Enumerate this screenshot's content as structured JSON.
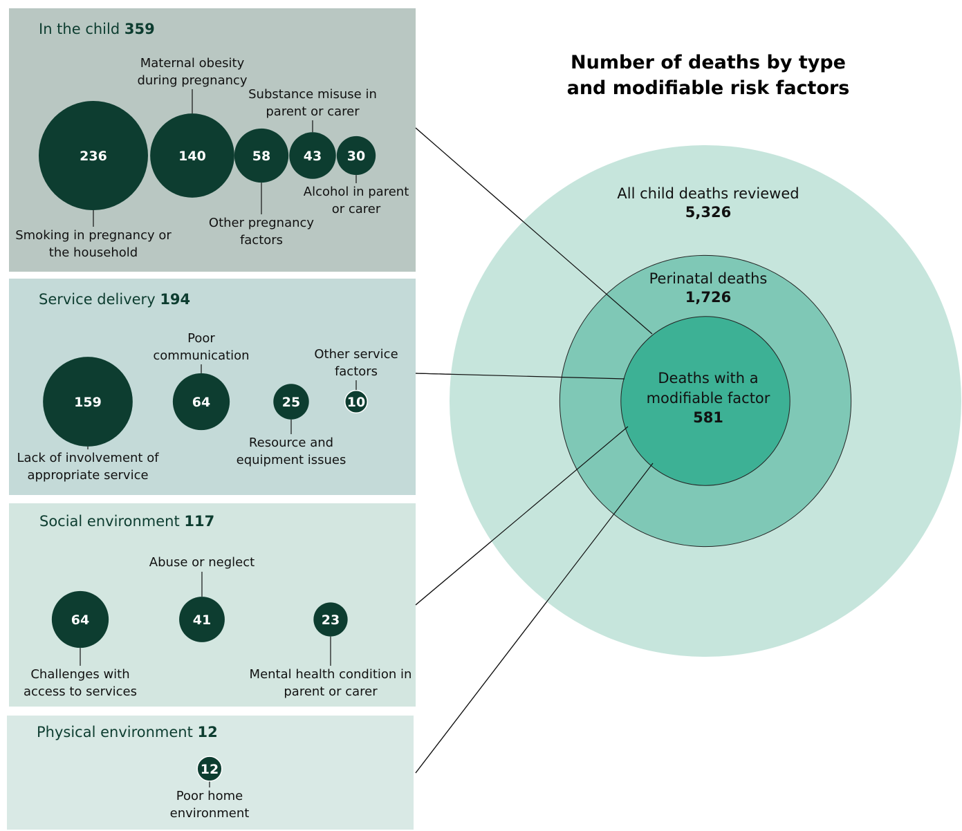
{
  "title": "Number of deaths by type and modifiable risk factors",
  "circles": [
    {
      "label": "All child deaths reviewed",
      "value": 5326,
      "value_label": "5,326",
      "color": "#c6e5dc"
    },
    {
      "label": "Perinatal deaths",
      "value": 1726,
      "value_label": "1,726",
      "color": "#7fc8b6"
    },
    {
      "label": "Deaths with a modifiable factor",
      "value": 581,
      "value_label": "581",
      "color": "#3db195"
    }
  ],
  "bubble_color": "#0d3d30",
  "panels": [
    {
      "title": "In the child",
      "total": 359,
      "factors": [
        {
          "label": "Smoking in pregnancy or the household",
          "value": 236
        },
        {
          "label": "Maternal obesity during pregnancy",
          "value": 140
        },
        {
          "label": "Other pregnancy factors",
          "value": 58
        },
        {
          "label": "Substance misuse in parent or carer",
          "value": 43
        },
        {
          "label": "Alcohol in parent or carer",
          "value": 30
        }
      ]
    },
    {
      "title": "Service delivery",
      "total": 194,
      "factors": [
        {
          "label": "Lack of involvement of appropriate service",
          "value": 159
        },
        {
          "label": "Poor communication",
          "value": 64
        },
        {
          "label": "Resource and equipment issues",
          "value": 25
        },
        {
          "label": "Other service factors",
          "value": 10
        }
      ]
    },
    {
      "title": "Social environment",
      "total": 117,
      "factors": [
        {
          "label": "Challenges with access to services",
          "value": 64
        },
        {
          "label": "Abuse or neglect",
          "value": 41
        },
        {
          "label": "Mental health condition in parent or carer",
          "value": 23
        }
      ]
    },
    {
      "title": "Physical environment",
      "total": 12,
      "factors": [
        {
          "label": "Poor home environment",
          "value": 12
        }
      ]
    }
  ]
}
